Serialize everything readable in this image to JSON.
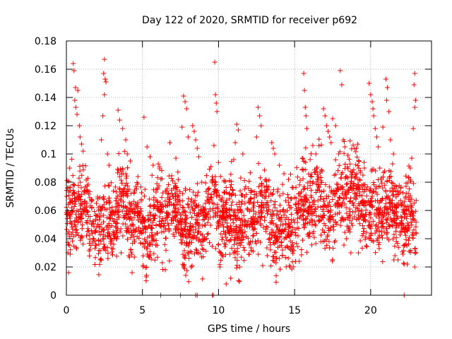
{
  "chart_data": {
    "type": "scatter",
    "title": "Day 122 of 2020, SRMTID for receiver p692",
    "xlabel": "GPS time / hours",
    "ylabel": "SRMTID / TECUs",
    "xlim": [
      0,
      24
    ],
    "ylim": [
      0,
      0.18
    ],
    "x_ticks": [
      0,
      5,
      10,
      15,
      20
    ],
    "x_tick_labels": [
      "0",
      "5",
      "10",
      "15",
      "20"
    ],
    "y_ticks": [
      0,
      0.02,
      0.04,
      0.06,
      0.08,
      0.1,
      0.12,
      0.14,
      0.16,
      0.18
    ],
    "y_tick_labels": [
      "0",
      "0.02",
      "0.04",
      "0.06",
      "0.08",
      "0.1",
      "0.12",
      "0.14",
      "0.16",
      "0.18"
    ],
    "grid": true,
    "marker": "+",
    "series": [
      {
        "name": "SRMTID",
        "color": "#ff0000",
        "x_range": [
          0,
          23
        ],
        "approx_point_count": 2500,
        "typical_range": [
          0.02,
          0.1
        ],
        "baseline_mean": 0.055,
        "points": [
          [
            0.45,
            0.164
          ],
          [
            0.5,
            0.159
          ],
          [
            0.6,
            0.147
          ],
          [
            0.75,
            0.145
          ],
          [
            0.55,
            0.138
          ],
          [
            0.62,
            0.133
          ],
          [
            0.7,
            0.128
          ],
          [
            0.85,
            0.12
          ],
          [
            0.9,
            0.112
          ],
          [
            1.0,
            0.107
          ],
          [
            1.1,
            0.102
          ],
          [
            0.2,
            0.09
          ],
          [
            0.1,
            0.03
          ],
          [
            0.15,
            0.016
          ],
          [
            2.5,
            0.167
          ],
          [
            2.45,
            0.157
          ],
          [
            2.55,
            0.153
          ],
          [
            2.6,
            0.151
          ],
          [
            2.5,
            0.142
          ],
          [
            2.4,
            0.127
          ],
          [
            2.3,
            0.11
          ],
          [
            2.7,
            0.1
          ],
          [
            2.8,
            0.092
          ],
          [
            3.4,
            0.131
          ],
          [
            3.5,
            0.124
          ],
          [
            3.7,
            0.118
          ],
          [
            3.9,
            0.11
          ],
          [
            4.0,
            0.1
          ],
          [
            4.2,
            0.095
          ],
          [
            3.6,
            0.03
          ],
          [
            4.1,
            0.028
          ],
          [
            5.1,
            0.126
          ],
          [
            5.3,
            0.105
          ],
          [
            5.5,
            0.098
          ],
          [
            5.7,
            0.092
          ],
          [
            6.0,
            0.076
          ],
          [
            6.3,
            0.023
          ],
          [
            6.5,
            0.018
          ],
          [
            7.7,
            0.141
          ],
          [
            7.8,
            0.137
          ],
          [
            7.9,
            0.132
          ],
          [
            7.6,
            0.119
          ],
          [
            8.0,
            0.112
          ],
          [
            6.8,
            0.108
          ],
          [
            7.2,
            0.097
          ],
          [
            8.3,
            0.12
          ],
          [
            8.4,
            0.116
          ],
          [
            8.5,
            0.11
          ],
          [
            8.6,
            0.104
          ],
          [
            8.7,
            0.098
          ],
          [
            8.2,
            0.02
          ],
          [
            8.9,
            0.08
          ],
          [
            9.5,
            0.091
          ],
          [
            9.75,
            0.165
          ],
          [
            9.8,
            0.142
          ],
          [
            9.85,
            0.136
          ],
          [
            9.9,
            0.13
          ],
          [
            9.7,
            0.106
          ],
          [
            10.0,
            0.094
          ],
          [
            10.1,
            0.02
          ],
          [
            10.5,
            0.008
          ],
          [
            11.2,
            0.121
          ],
          [
            11.3,
            0.117
          ],
          [
            11.1,
            0.108
          ],
          [
            11.6,
            0.1
          ],
          [
            11.0,
            0.096
          ],
          [
            10.8,
            0.012
          ],
          [
            11.4,
            0.02
          ],
          [
            12.6,
            0.133
          ],
          [
            12.7,
            0.127
          ],
          [
            12.8,
            0.12
          ],
          [
            12.5,
            0.112
          ],
          [
            13.5,
            0.108
          ],
          [
            13.6,
            0.104
          ],
          [
            13.7,
            0.1
          ],
          [
            13.2,
            0.028
          ],
          [
            12.9,
            0.021
          ],
          [
            14.0,
            0.092
          ],
          [
            14.3,
            0.086
          ],
          [
            14.6,
            0.082
          ],
          [
            14.9,
            0.076
          ],
          [
            14.2,
            0.028
          ],
          [
            14.7,
            0.02
          ],
          [
            15.3,
            0.024
          ],
          [
            15.6,
            0.157
          ],
          [
            15.65,
            0.145
          ],
          [
            15.7,
            0.133
          ],
          [
            15.75,
            0.127
          ],
          [
            15.8,
            0.118
          ],
          [
            15.5,
            0.097
          ],
          [
            16.2,
            0.106
          ],
          [
            16.4,
            0.1
          ],
          [
            16.9,
            0.132
          ],
          [
            17.0,
            0.127
          ],
          [
            17.1,
            0.12
          ],
          [
            17.2,
            0.116
          ],
          [
            17.3,
            0.112
          ],
          [
            17.4,
            0.108
          ],
          [
            17.5,
            0.125
          ],
          [
            17.7,
            0.12
          ],
          [
            18.0,
            0.159
          ],
          [
            18.1,
            0.149
          ],
          [
            18.2,
            0.11
          ],
          [
            18.3,
            0.105
          ],
          [
            18.5,
            0.099
          ],
          [
            17.9,
            0.1
          ],
          [
            18.4,
            0.04
          ],
          [
            18.7,
            0.03
          ],
          [
            19.9,
            0.15
          ],
          [
            20.0,
            0.142
          ],
          [
            20.1,
            0.137
          ],
          [
            20.15,
            0.132
          ],
          [
            20.2,
            0.127
          ],
          [
            20.3,
            0.118
          ],
          [
            20.4,
            0.112
          ],
          [
            20.5,
            0.105
          ],
          [
            21.0,
            0.153
          ],
          [
            21.1,
            0.147
          ],
          [
            21.05,
            0.138
          ],
          [
            21.2,
            0.13
          ],
          [
            20.8,
            0.119
          ],
          [
            21.3,
            0.11
          ],
          [
            21.5,
            0.1
          ],
          [
            20.6,
            0.09
          ],
          [
            22.9,
            0.157
          ],
          [
            22.85,
            0.149
          ],
          [
            22.95,
            0.138
          ],
          [
            22.9,
            0.133
          ],
          [
            22.8,
            0.118
          ],
          [
            22.7,
            0.097
          ],
          [
            22.6,
            0.09
          ],
          [
            22.5,
            0.083
          ],
          [
            21.6,
            0.028
          ],
          [
            21.8,
            0.025
          ],
          [
            22.2,
            0.022
          ],
          [
            22.4,
            0.022
          ],
          [
            22.9,
            0.02
          ],
          [
            19.2,
            0.03
          ],
          [
            19.7,
            0.035
          ],
          [
            6.2,
            0.0
          ],
          [
            7.5,
            0.0
          ],
          [
            8.5,
            0.0
          ],
          [
            8.6,
            0.0
          ],
          [
            9.6,
            0.0
          ],
          [
            9.65,
            0.0
          ],
          [
            22.2,
            0.0
          ]
        ]
      }
    ]
  }
}
